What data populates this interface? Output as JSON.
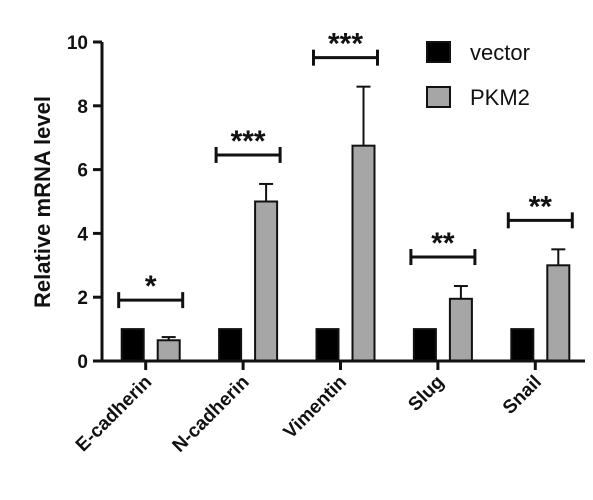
{
  "chart_data": {
    "type": "bar",
    "ylabel": "Relative mRNA level",
    "xlabel": "",
    "ylim": [
      0,
      10
    ],
    "yticks": [
      0,
      2,
      4,
      6,
      8,
      10
    ],
    "categories": [
      "E-cadherin",
      "N-cadherin",
      "Vimentin",
      "Slug",
      "Snail"
    ],
    "series": [
      {
        "name": "vector",
        "color": "#000000",
        "values": [
          1,
          1,
          1,
          1,
          1
        ]
      },
      {
        "name": "PKM2",
        "color": "#a6a6a6",
        "values": [
          0.65,
          5.0,
          6.75,
          1.95,
          3.0
        ],
        "errors": [
          0.1,
          0.55,
          1.85,
          0.4,
          0.5
        ]
      }
    ],
    "significance": [
      "*",
      "***",
      "***",
      "**",
      "**"
    ],
    "legend_position": "top-right",
    "grid": false
  }
}
